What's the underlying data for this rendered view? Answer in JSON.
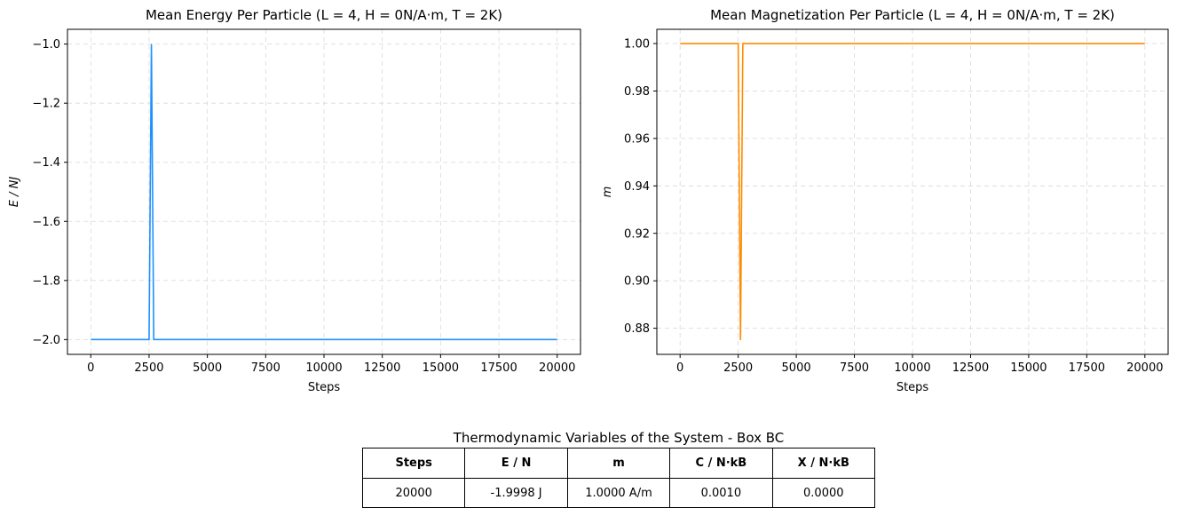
{
  "chart_data": [
    {
      "type": "line",
      "title": "Mean Energy Per Particle (L = 4, H = 0N/A·m, T = 2K)",
      "xlabel": "Steps",
      "ylabel": "E / NJ",
      "xlim": [
        -1000,
        21000
      ],
      "ylim": [
        -2.05,
        -0.95
      ],
      "xticks": [
        0,
        2500,
        5000,
        7500,
        10000,
        12500,
        15000,
        17500,
        20000
      ],
      "yticks": [
        -2.0,
        -1.8,
        -1.6,
        -1.4,
        -1.2,
        -1.0
      ],
      "ytick_decimals": 1,
      "grid": true,
      "series": [
        {
          "color": "#1e90ff",
          "x": [
            0,
            2500,
            2600,
            2700,
            20000
          ],
          "y": [
            -2.0,
            -2.0,
            -1.0,
            -2.0,
            -2.0
          ]
        }
      ]
    },
    {
      "type": "line",
      "title": "Mean Magnetization Per Particle (L = 4, H = 0N/A·m, T = 2K)",
      "xlabel": "Steps",
      "ylabel": "m",
      "xlim": [
        -1000,
        21000
      ],
      "ylim": [
        0.869,
        1.006
      ],
      "xticks": [
        0,
        2500,
        5000,
        7500,
        10000,
        12500,
        15000,
        17500,
        20000
      ],
      "yticks": [
        0.88,
        0.9,
        0.92,
        0.94,
        0.96,
        0.98,
        1.0
      ],
      "ytick_decimals": 2,
      "grid": true,
      "series": [
        {
          "color": "#ff8c00",
          "x": [
            0,
            2500,
            2600,
            2700,
            20000
          ],
          "y": [
            1.0,
            1.0,
            0.875,
            1.0,
            1.0
          ]
        }
      ]
    }
  ],
  "table": {
    "title": "Thermodynamic Variables of the System - Box BC",
    "headers": [
      "Steps",
      "E / N",
      "m",
      "C / N·kB",
      "X / N·kB"
    ],
    "row": [
      "20000",
      "-1.9998 J",
      "1.0000 A/m",
      "0.0010",
      "0.0000"
    ]
  }
}
